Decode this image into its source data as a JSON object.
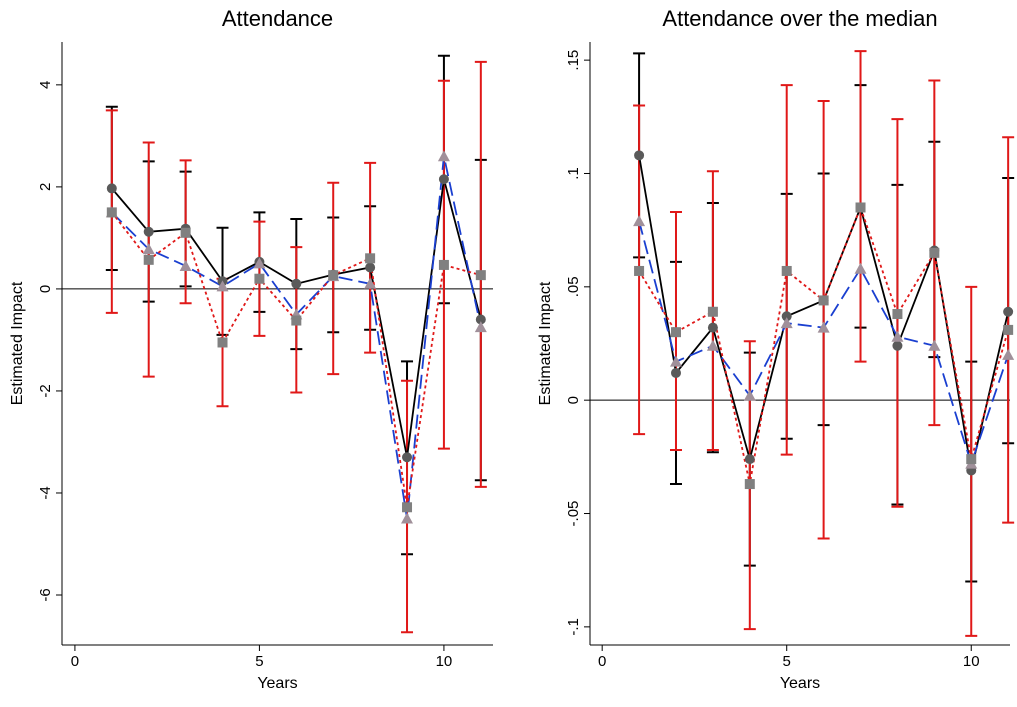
{
  "chart_data": [
    {
      "type": "line",
      "title": "Attendance",
      "xlabel": "Years",
      "ylabel": "Estimated Impact",
      "x": [
        1,
        2,
        3,
        4,
        5,
        6,
        7,
        8,
        9,
        10,
        11
      ],
      "xlim": [
        -0.35,
        11.33
      ],
      "ylim": [
        -6.98,
        4.84
      ],
      "xticks": [
        0,
        5,
        10
      ],
      "yticks": [
        -6,
        -4,
        -2,
        0,
        2,
        4
      ],
      "hline": 0,
      "series": [
        {
          "color": "#000000",
          "dash": "solid",
          "marker": "circle",
          "marker_color": "#5a5a5a",
          "values": [
            1.97,
            1.12,
            1.18,
            0.15,
            0.53,
            0.1,
            0.28,
            0.42,
            -3.3,
            2.15,
            -0.6
          ],
          "ci_low": [
            0.37,
            -0.25,
            0.05,
            -0.9,
            -0.45,
            -1.18,
            -0.85,
            -0.8,
            -5.2,
            -0.28,
            -3.75
          ],
          "ci_high": [
            3.57,
            2.5,
            2.3,
            1.2,
            1.5,
            1.37,
            1.4,
            1.62,
            -1.42,
            4.57,
            2.53
          ]
        },
        {
          "color": "#1a3fd0",
          "dash": "dashed",
          "marker": "triangle",
          "marker_color": "#a0909a",
          "values": [
            1.5,
            0.78,
            0.45,
            0.05,
            0.5,
            -0.5,
            0.25,
            0.1,
            -4.5,
            2.6,
            -0.75
          ]
        },
        {
          "color": "#e01818",
          "dash": "dotted",
          "marker": "square",
          "marker_color": "#808080",
          "values": [
            1.5,
            0.57,
            1.1,
            -1.05,
            0.2,
            -0.62,
            0.27,
            0.6,
            -4.28,
            0.47,
            0.27
          ],
          "ci_low": [
            -0.47,
            -1.72,
            -0.28,
            -2.3,
            -0.92,
            -2.03,
            -1.67,
            -1.25,
            -6.73,
            -3.13,
            -3.88
          ],
          "ci_high": [
            3.5,
            2.87,
            2.52,
            0.2,
            1.32,
            0.82,
            2.08,
            2.47,
            -1.8,
            4.08,
            4.45
          ]
        }
      ]
    },
    {
      "type": "line",
      "title": "Attendance over the median",
      "xlabel": "Years",
      "ylabel": "Estimated Impact",
      "x": [
        1,
        2,
        3,
        4,
        5,
        6,
        7,
        8,
        9,
        10,
        11
      ],
      "xlim": [
        -0.33,
        11.05
      ],
      "ylim": [
        -0.108,
        0.158
      ],
      "xticks": [
        0,
        5,
        10
      ],
      "yticks": [
        {
          "value": -0.1,
          "label": "-.1"
        },
        {
          "value": -0.05,
          "label": "-.05"
        },
        0,
        {
          "value": 0.05,
          "label": ".05"
        },
        {
          "value": 0.1,
          "label": ".1"
        },
        {
          "value": 0.15,
          "label": ".15"
        }
      ],
      "hline": 0,
      "series": [
        {
          "color": "#000000",
          "dash": "solid",
          "marker": "circle",
          "marker_color": "#5a5a5a",
          "values": [
            0.108,
            0.012,
            0.032,
            -0.026,
            0.037,
            0.044,
            0.085,
            0.024,
            0.066,
            -0.031,
            0.039
          ],
          "ci_low": [
            0.063,
            -0.037,
            -0.023,
            -0.073,
            -0.017,
            -0.011,
            0.032,
            -0.046,
            0.019,
            -0.08,
            -0.019
          ],
          "ci_high": [
            0.153,
            0.061,
            0.087,
            0.021,
            0.091,
            0.1,
            0.139,
            0.095,
            0.114,
            0.017,
            0.098
          ]
        },
        {
          "color": "#1a3fd0",
          "dash": "dashed",
          "marker": "triangle",
          "marker_color": "#a0909a",
          "values": [
            0.079,
            0.017,
            0.024,
            0.002,
            0.034,
            0.032,
            0.058,
            0.028,
            0.024,
            -0.028,
            0.02
          ]
        },
        {
          "color": "#e01818",
          "dash": "dotted",
          "marker": "square",
          "marker_color": "#808080",
          "values": [
            0.057,
            0.03,
            0.039,
            -0.037,
            0.057,
            0.044,
            0.085,
            0.038,
            0.065,
            -0.026,
            0.031
          ],
          "ci_low": [
            -0.015,
            -0.022,
            -0.022,
            -0.101,
            -0.024,
            -0.061,
            0.017,
            -0.047,
            -0.011,
            -0.104,
            -0.054
          ],
          "ci_high": [
            0.13,
            0.083,
            0.101,
            0.026,
            0.139,
            0.132,
            0.154,
            0.124,
            0.141,
            0.05,
            0.116
          ]
        }
      ]
    }
  ]
}
